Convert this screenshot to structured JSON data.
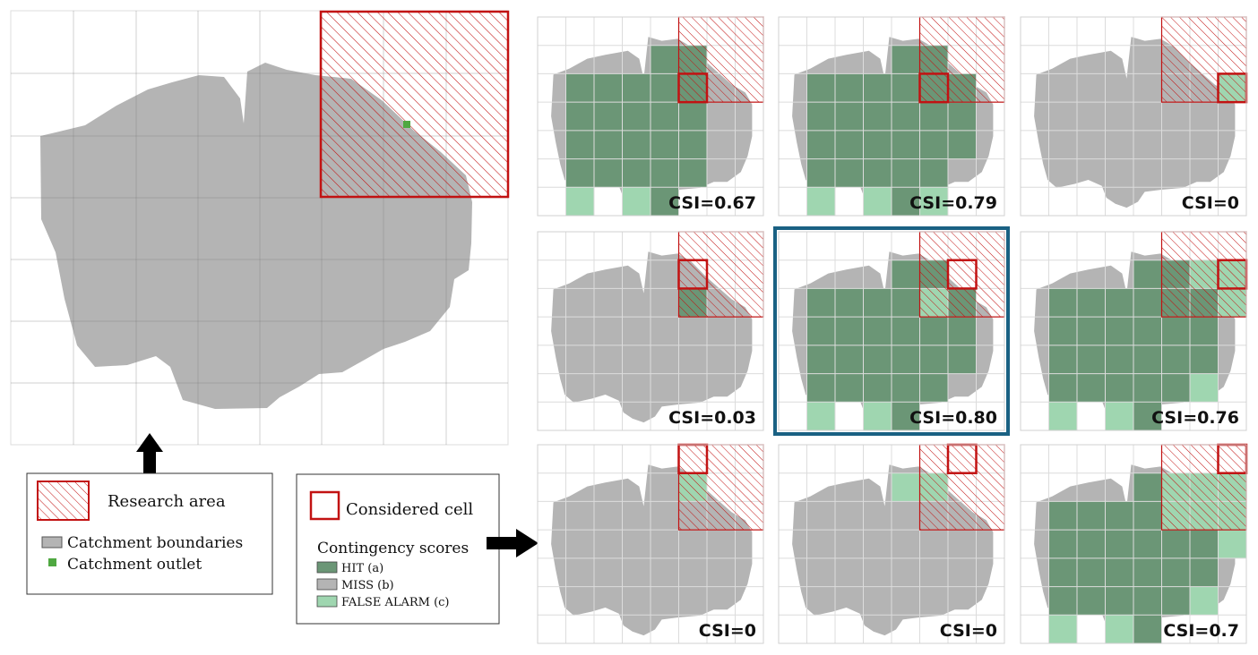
{
  "colors": {
    "catchment": "#b4b4b4",
    "hit": "#6b9676",
    "miss": "#b4b4b4",
    "false_alarm": "#9fd6b0",
    "research_area": "#c21212",
    "considered_cell": "#c21212",
    "grid_line": "#dcdcdc",
    "outlet": "#4fa841",
    "highlight_frame": "#1a6183"
  },
  "overview": {
    "research_area_icon": "hatched-square-icon",
    "outlet_icon": "green-square-icon"
  },
  "legend_left": {
    "research_area_label": "Research area",
    "catchment_label": "Catchment boundaries",
    "outlet_label": "Catchment outlet"
  },
  "legend_right": {
    "considered_cell_label": "Considered cell",
    "contingency_title": "Contingency scores",
    "hit_label": "HIT (a)",
    "miss_label": "MISS (b)",
    "false_alarm_label": "FALSE ALARM (c)"
  },
  "panels": [
    {
      "csi": "CSI=0.67",
      "highlighted": false
    },
    {
      "csi": "CSI=0.79",
      "highlighted": false
    },
    {
      "csi": "CSI=0",
      "highlighted": false
    },
    {
      "csi": "CSI=0.03",
      "highlighted": false
    },
    {
      "csi": "CSI=0.80",
      "highlighted": true
    },
    {
      "csi": "CSI=0.76",
      "highlighted": false
    },
    {
      "csi": "CSI=0",
      "highlighted": false
    },
    {
      "csi": "CSI=0",
      "highlighted": false
    },
    {
      "csi": "CSI=0.7",
      "highlighted": false
    }
  ]
}
